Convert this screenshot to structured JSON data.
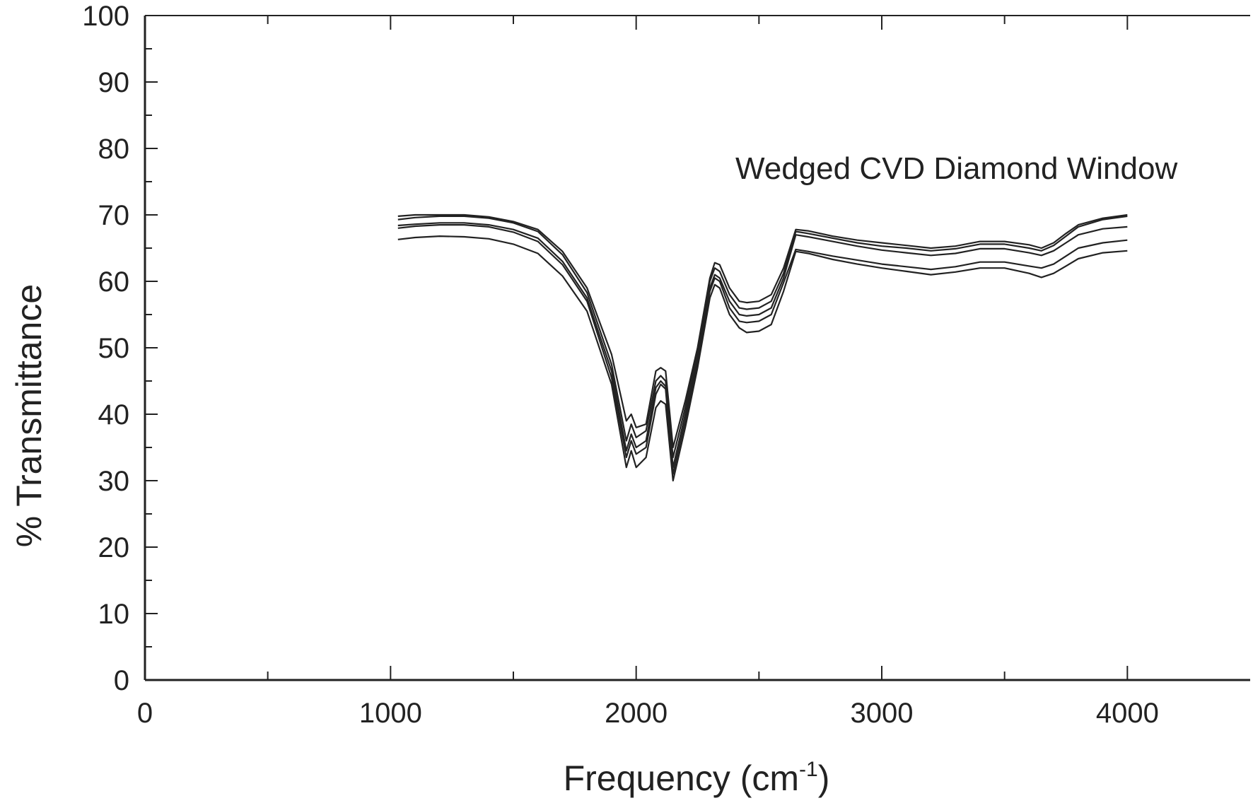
{
  "chart_data": {
    "type": "line",
    "title": "",
    "annotation": "Wedged CVD Diamond Window",
    "xlabel": {
      "main": "Frequency (cm",
      "sup": "-1",
      "close": ")"
    },
    "ylabel": "% Transmittance",
    "xlim": [
      0,
      4500
    ],
    "ylim": [
      0,
      100
    ],
    "x_ticks": [
      0,
      1000,
      2000,
      3000,
      4000
    ],
    "x_tick_labels": [
      "0",
      "1000",
      "2000",
      "3000",
      "4000"
    ],
    "x_minor_ticks": [
      500,
      1500,
      2500,
      3500
    ],
    "y_ticks": [
      0,
      10,
      20,
      30,
      40,
      50,
      60,
      70,
      80,
      90,
      100
    ],
    "y_tick_labels": [
      "0",
      "10",
      "20",
      "30",
      "40",
      "50",
      "60",
      "70",
      "80",
      "90",
      "100"
    ],
    "y_minor_ticks": [
      5,
      15,
      25,
      35,
      45,
      55,
      65,
      75,
      85,
      95
    ],
    "grid": false,
    "line_color": "#222222",
    "series": [
      {
        "x": [
          1030,
          1100,
          1200,
          1300,
          1400,
          1500,
          1600,
          1700,
          1800,
          1900,
          1960,
          1980,
          2000,
          2040,
          2080,
          2100,
          2120,
          2150,
          2200,
          2250,
          2300,
          2320,
          2340,
          2380,
          2420,
          2450,
          2500,
          2550,
          2600,
          2650,
          2700,
          2800,
          2900,
          3000,
          3100,
          3200,
          3300,
          3400,
          3500,
          3600,
          3650,
          3700,
          3750,
          3800,
          3900,
          4000
        ],
        "values": [
          69.8,
          70.0,
          70.0,
          70.0,
          69.7,
          69.0,
          67.8,
          64.5,
          59.0,
          49.0,
          39.0,
          40.0,
          38.0,
          38.5,
          46.5,
          47.0,
          46.5,
          35.0,
          42.0,
          50.0,
          60.5,
          62.8,
          62.5,
          59.0,
          57.0,
          56.8,
          57.0,
          58.0,
          62.0,
          67.8,
          67.6,
          66.8,
          66.2,
          65.8,
          65.4,
          65.0,
          65.3,
          66.0,
          66.0,
          65.5,
          65.0,
          65.8,
          67.2,
          68.5,
          69.5,
          70.0
        ]
      },
      {
        "x": [
          1030,
          1100,
          1200,
          1300,
          1400,
          1500,
          1600,
          1700,
          1800,
          1900,
          1960,
          1980,
          2000,
          2040,
          2080,
          2100,
          2120,
          2150,
          2200,
          2250,
          2300,
          2320,
          2340,
          2380,
          2420,
          2450,
          2500,
          2550,
          2600,
          2650,
          2700,
          2800,
          2900,
          3000,
          3100,
          3200,
          3300,
          3400,
          3500,
          3600,
          3650,
          3700,
          3750,
          3800,
          3900,
          4000
        ],
        "values": [
          69.3,
          69.6,
          69.8,
          69.8,
          69.5,
          68.8,
          67.5,
          64.0,
          58.3,
          47.5,
          36.0,
          38.5,
          36.5,
          37.5,
          45.0,
          45.8,
          45.0,
          33.5,
          41.0,
          49.5,
          60.0,
          62.0,
          61.5,
          58.0,
          56.0,
          55.8,
          56.0,
          57.0,
          61.2,
          67.5,
          67.2,
          66.5,
          65.8,
          65.3,
          65.0,
          64.6,
          64.9,
          65.6,
          65.6,
          65.0,
          64.6,
          65.4,
          66.8,
          68.2,
          69.3,
          69.8
        ]
      },
      {
        "x": [
          1030,
          1100,
          1200,
          1300,
          1400,
          1500,
          1600,
          1700,
          1800,
          1900,
          1960,
          1980,
          2000,
          2040,
          2080,
          2100,
          2120,
          2150,
          2200,
          2250,
          2300,
          2320,
          2340,
          2380,
          2420,
          2450,
          2500,
          2550,
          2600,
          2650,
          2700,
          2800,
          2900,
          3000,
          3100,
          3200,
          3300,
          3400,
          3500,
          3600,
          3650,
          3700,
          3750,
          3800,
          3900,
          4000
        ],
        "values": [
          68.4,
          68.6,
          68.8,
          68.8,
          68.5,
          67.8,
          66.5,
          63.0,
          57.5,
          46.5,
          34.5,
          37.0,
          35.0,
          36.0,
          44.0,
          45.0,
          44.2,
          32.0,
          40.0,
          48.5,
          59.0,
          61.0,
          60.5,
          57.0,
          55.0,
          54.8,
          55.0,
          56.0,
          60.5,
          67.0,
          66.7,
          66.0,
          65.3,
          64.7,
          64.3,
          63.9,
          64.2,
          64.9,
          64.9,
          64.3,
          63.9,
          64.6,
          65.8,
          67.0,
          67.9,
          68.2
        ]
      },
      {
        "x": [
          1030,
          1100,
          1200,
          1300,
          1400,
          1500,
          1600,
          1700,
          1800,
          1900,
          1960,
          1980,
          2000,
          2040,
          2080,
          2100,
          2120,
          2150,
          2200,
          2250,
          2300,
          2320,
          2340,
          2380,
          2420,
          2450,
          2500,
          2550,
          2600,
          2650,
          2700,
          2800,
          2900,
          3000,
          3100,
          3200,
          3300,
          3400,
          3500,
          3600,
          3650,
          3700,
          3750,
          3800,
          3900,
          4000
        ],
        "values": [
          68.0,
          68.3,
          68.5,
          68.5,
          68.2,
          67.4,
          66.0,
          62.5,
          57.0,
          45.5,
          33.5,
          36.0,
          34.0,
          35.0,
          43.0,
          44.5,
          43.8,
          31.0,
          39.0,
          48.0,
          58.5,
          60.5,
          60.0,
          56.0,
          54.0,
          53.8,
          54.0,
          55.0,
          59.8,
          64.8,
          64.5,
          63.8,
          63.2,
          62.6,
          62.2,
          61.8,
          62.2,
          62.9,
          62.9,
          62.3,
          62.0,
          62.6,
          63.8,
          65.0,
          65.8,
          66.2
        ]
      },
      {
        "x": [
          1030,
          1100,
          1200,
          1300,
          1400,
          1500,
          1600,
          1700,
          1800,
          1900,
          1960,
          1980,
          2000,
          2040,
          2080,
          2100,
          2120,
          2150,
          2200,
          2250,
          2300,
          2320,
          2340,
          2380,
          2420,
          2450,
          2500,
          2550,
          2600,
          2650,
          2700,
          2800,
          2900,
          3000,
          3100,
          3200,
          3300,
          3400,
          3500,
          3600,
          3650,
          3700,
          3750,
          3800,
          3900,
          4000
        ],
        "values": [
          66.3,
          66.6,
          66.8,
          66.7,
          66.4,
          65.6,
          64.2,
          60.8,
          55.5,
          44.5,
          32.0,
          34.5,
          32.0,
          33.5,
          41.0,
          42.0,
          41.5,
          30.0,
          38.0,
          47.0,
          57.5,
          59.5,
          59.0,
          55.0,
          53.0,
          52.3,
          52.5,
          53.5,
          58.5,
          64.5,
          64.2,
          63.3,
          62.6,
          62.0,
          61.5,
          61.0,
          61.4,
          62.0,
          62.0,
          61.2,
          60.6,
          61.2,
          62.3,
          63.4,
          64.3,
          64.6
        ]
      }
    ]
  }
}
